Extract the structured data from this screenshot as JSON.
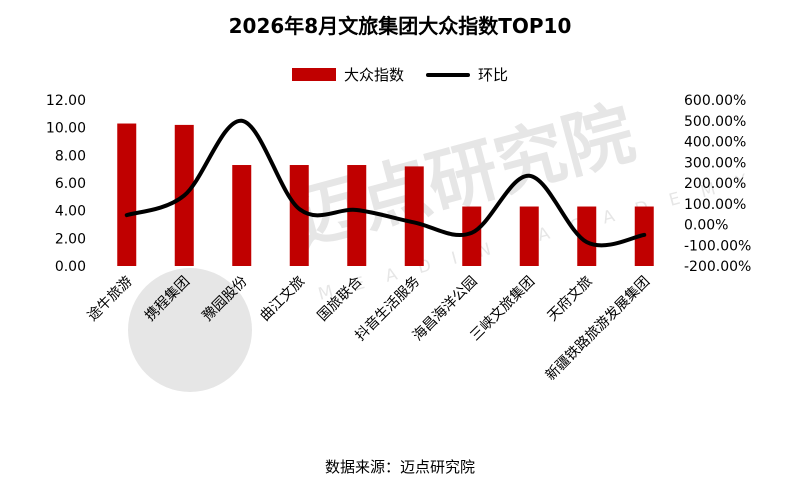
{
  "title": "2026年8月文旅集团大众指数TOP10",
  "legend": {
    "bar_label": "大众指数",
    "line_label": "环比"
  },
  "source": "数据来源：迈点研究院",
  "watermark": {
    "cn": "迈点研究院",
    "en": "MEADIN ACADEMY"
  },
  "colors": {
    "bar": "#c00000",
    "line": "#000000"
  },
  "chart_data": {
    "type": "bar",
    "categories": [
      "途牛旅游",
      "携程集团",
      "豫园股份",
      "曲江文旅",
      "国旅联合",
      "抖音生活服务",
      "海昌海洋公园",
      "三峡文旅集团",
      "天府文旅",
      "新疆铁路旅游发展集团"
    ],
    "series": [
      {
        "name": "大众指数",
        "type": "bar",
        "axis": "left",
        "values": [
          10.3,
          10.2,
          7.3,
          7.3,
          7.3,
          7.2,
          4.3,
          4.3,
          4.3,
          4.3
        ]
      },
      {
        "name": "环比",
        "type": "line",
        "axis": "right",
        "values": [
          45,
          140,
          500,
          75,
          70,
          10,
          -40,
          235,
          -85,
          -50
        ]
      }
    ],
    "y_left": {
      "min": 0,
      "max": 12,
      "step": 2,
      "ticks": [
        "0.00",
        "2.00",
        "4.00",
        "6.00",
        "8.00",
        "10.00",
        "12.00"
      ]
    },
    "y_right": {
      "min": -200,
      "max": 600,
      "step": 100,
      "ticks": [
        "-200.00%",
        "-100.00%",
        "0.00%",
        "100.00%",
        "200.00%",
        "300.00%",
        "400.00%",
        "500.00%",
        "600.00%"
      ]
    },
    "grid": false,
    "legend_position": "top"
  }
}
